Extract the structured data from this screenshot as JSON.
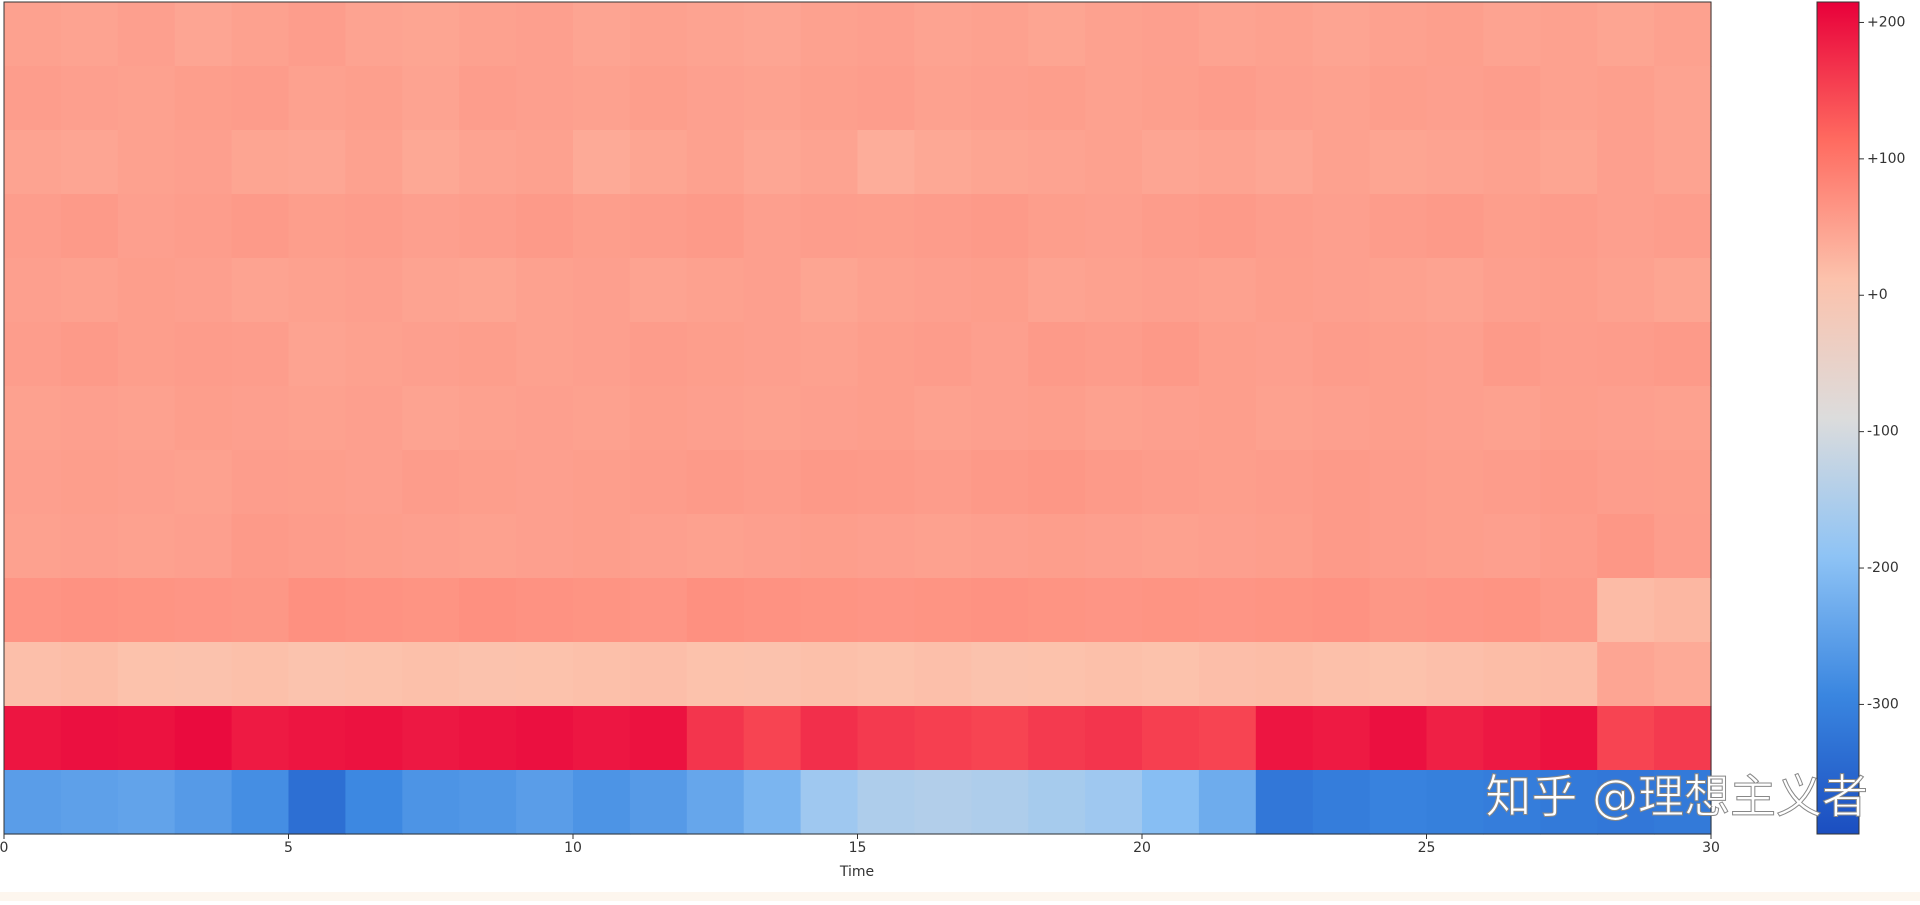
{
  "chart_data": {
    "type": "heatmap",
    "x_label": "Time",
    "xlim": [
      0,
      30
    ],
    "xticks": [
      0,
      5,
      10,
      15,
      20,
      25,
      30
    ],
    "x": [
      0,
      1,
      2,
      3,
      4,
      5,
      6,
      7,
      8,
      9,
      10,
      11,
      12,
      13,
      14,
      15,
      16,
      17,
      18,
      19,
      20,
      21,
      22,
      23,
      24,
      25,
      26,
      27,
      28,
      29
    ],
    "z": [
      [
        50,
        48,
        52,
        45,
        50,
        55,
        48,
        46,
        50,
        52,
        47,
        50,
        48,
        45,
        50,
        52,
        48,
        50,
        46,
        50,
        52,
        48,
        50,
        47,
        50,
        53,
        48,
        50,
        46,
        50
      ],
      [
        55,
        52,
        50,
        54,
        56,
        50,
        53,
        48,
        55,
        52,
        50,
        54,
        51,
        49,
        53,
        55,
        50,
        52,
        54,
        50,
        53,
        56,
        52,
        50,
        54,
        52,
        55,
        50,
        53,
        48
      ],
      [
        48,
        45,
        50,
        52,
        46,
        44,
        50,
        42,
        48,
        50,
        40,
        46,
        50,
        44,
        48,
        36,
        42,
        46,
        48,
        50,
        45,
        48,
        44,
        50,
        46,
        48,
        50,
        46,
        52,
        48
      ],
      [
        55,
        58,
        52,
        55,
        58,
        54,
        56,
        52,
        55,
        58,
        54,
        56,
        58,
        52,
        55,
        54,
        56,
        58,
        54,
        52,
        56,
        58,
        55,
        52,
        56,
        58,
        54,
        56,
        52,
        55
      ],
      [
        52,
        50,
        54,
        52,
        48,
        50,
        52,
        48,
        46,
        50,
        52,
        48,
        50,
        52,
        46,
        50,
        52,
        54,
        48,
        50,
        52,
        50,
        54,
        52,
        50,
        48,
        52,
        54,
        50,
        46
      ],
      [
        55,
        58,
        54,
        56,
        55,
        48,
        50,
        52,
        54,
        50,
        52,
        56,
        54,
        52,
        50,
        54,
        56,
        52,
        58,
        56,
        60,
        54,
        52,
        56,
        54,
        52,
        58,
        55,
        56,
        58
      ],
      [
        50,
        52,
        50,
        54,
        52,
        50,
        52,
        48,
        50,
        52,
        50,
        54,
        52,
        50,
        52,
        54,
        50,
        52,
        54,
        50,
        52,
        54,
        50,
        52,
        54,
        52,
        50,
        54,
        52,
        50
      ],
      [
        52,
        54,
        52,
        50,
        55,
        54,
        52,
        56,
        54,
        52,
        54,
        56,
        58,
        56,
        60,
        58,
        56,
        60,
        62,
        58,
        56,
        54,
        56,
        58,
        56,
        54,
        56,
        58,
        55,
        54
      ],
      [
        50,
        52,
        50,
        52,
        58,
        56,
        54,
        52,
        50,
        52,
        54,
        52,
        50,
        52,
        54,
        52,
        50,
        52,
        54,
        52,
        50,
        52,
        54,
        58,
        56,
        54,
        52,
        56,
        62,
        55
      ],
      [
        65,
        68,
        66,
        64,
        62,
        70,
        68,
        66,
        70,
        68,
        66,
        64,
        70,
        68,
        66,
        64,
        66,
        68,
        66,
        64,
        66,
        64,
        66,
        68,
        62,
        64,
        66,
        60,
        20,
        25
      ],
      [
        15,
        18,
        12,
        10,
        14,
        8,
        12,
        14,
        10,
        12,
        14,
        16,
        12,
        10,
        14,
        12,
        15,
        10,
        12,
        14,
        12,
        16,
        18,
        14,
        12,
        15,
        18,
        20,
        45,
        40
      ],
      [
        195,
        200,
        198,
        205,
        190,
        195,
        198,
        192,
        196,
        200,
        194,
        198,
        165,
        150,
        170,
        160,
        155,
        150,
        160,
        165,
        155,
        150,
        195,
        190,
        200,
        185,
        192,
        198,
        150,
        160
      ],
      [
        -255,
        -250,
        -245,
        -260,
        -280,
        -335,
        -290,
        -270,
        -265,
        -255,
        -270,
        -260,
        -240,
        -215,
        -170,
        -150,
        -145,
        -150,
        -160,
        -170,
        -200,
        -230,
        -320,
        -310,
        -300,
        -305,
        -310,
        -315,
        -320,
        -315
      ]
    ],
    "clim": [
      -395,
      215
    ],
    "cticks": [
      {
        "value": 200,
        "label": "+200"
      },
      {
        "value": 100,
        "label": "+100"
      },
      {
        "value": 0,
        "label": "+0"
      },
      -100,
      -200,
      -300
    ],
    "colormap": [
      "#1b4ec0",
      "#3a86e0",
      "#8ec3f5",
      "#dcdcdc",
      "#fcc2ac",
      "#ff6b60",
      "#e8003a"
    ],
    "watermark": "知乎 @理想主义者"
  }
}
